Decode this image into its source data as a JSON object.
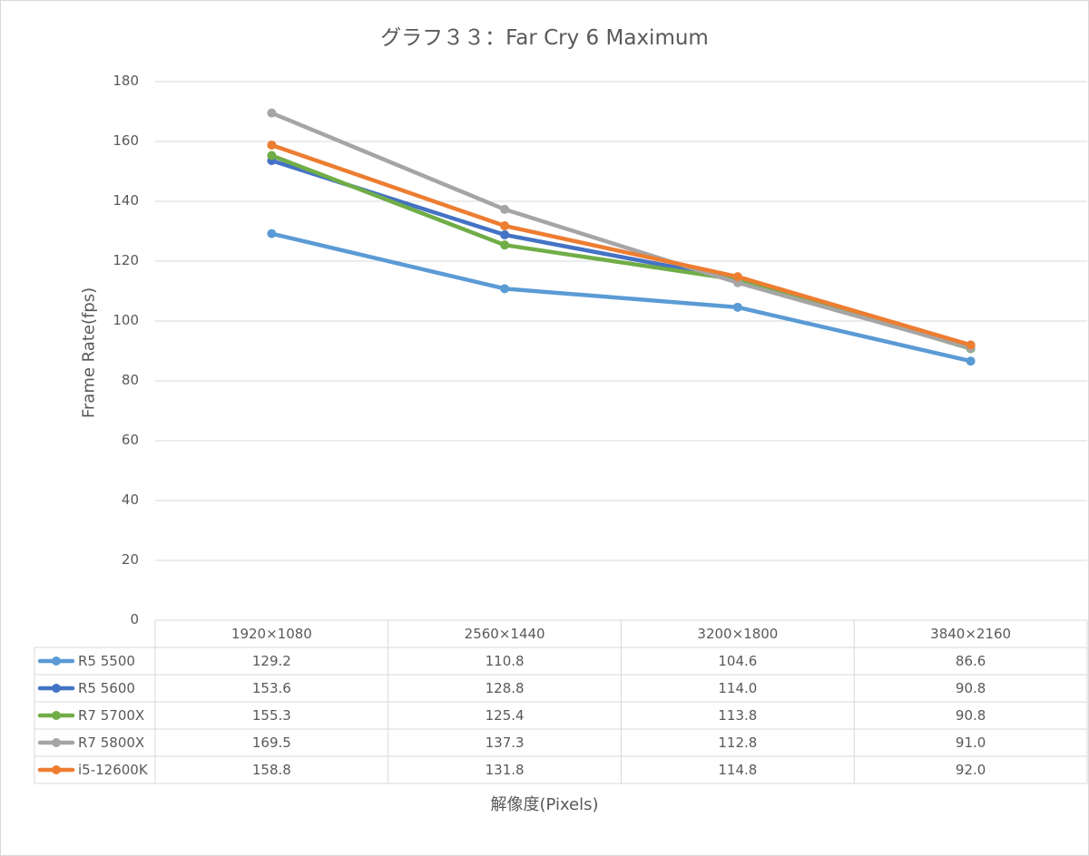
{
  "chart_data": {
    "type": "line",
    "title": "グラフ３３：Far Cry 6 Maximum",
    "xlabel": "解像度(Pixels)",
    "ylabel": "Frame Rate(fps)",
    "ylim": [
      0,
      180
    ],
    "yticks": [
      0,
      20,
      40,
      60,
      80,
      100,
      120,
      140,
      160,
      180
    ],
    "yticks_text": [
      "0",
      "20",
      "40",
      "60",
      "80",
      "100",
      "120",
      "140",
      "160",
      "180"
    ],
    "grid": true,
    "legend": "data-table-below",
    "categories": [
      "1920×1080",
      "2560×1440",
      "3200×1800",
      "3840×2160"
    ],
    "series": [
      {
        "name": "R5 5500",
        "color": "#5b9bd5",
        "values": [
          129.2,
          110.8,
          104.6,
          86.6
        ],
        "values_text": [
          "129.2",
          "110.8",
          "104.6",
          "86.6"
        ]
      },
      {
        "name": "R5 5600",
        "color": "#4472c4",
        "values": [
          153.6,
          128.8,
          114.0,
          90.8
        ],
        "values_text": [
          "153.6",
          "128.8",
          "114.0",
          "90.8"
        ]
      },
      {
        "name": "R7 5700X",
        "color": "#70ad47",
        "values": [
          155.3,
          125.4,
          113.8,
          90.8
        ],
        "values_text": [
          "155.3",
          "125.4",
          "113.8",
          "90.8"
        ]
      },
      {
        "name": "R7 5800X",
        "color": "#a5a5a5",
        "values": [
          169.5,
          137.3,
          112.8,
          91.0
        ],
        "values_text": [
          "169.5",
          "137.3",
          "112.8",
          "91.0"
        ]
      },
      {
        "name": "i5-12600K",
        "color": "#ed7d31",
        "values": [
          158.8,
          131.8,
          114.8,
          92.0
        ],
        "values_text": [
          "158.8",
          "131.8",
          "114.8",
          "92.0"
        ]
      }
    ]
  }
}
